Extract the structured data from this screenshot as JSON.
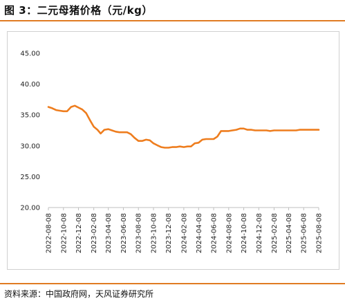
{
  "header": {
    "title": "图 3：二元母猪价格（元/kg）"
  },
  "footer": {
    "source": "资料来源：中国政府网，天风证券研究所"
  },
  "colors": {
    "accent": "#e07b22",
    "line": "#ee7d1e",
    "axis": "#bfbfbf"
  },
  "chart_data": {
    "type": "line",
    "title": "二元母猪价格（元/kg）",
    "xlabel": "",
    "ylabel": "",
    "ylim": [
      20,
      45
    ],
    "y_ticks": [
      "20.00",
      "25.00",
      "30.00",
      "35.00",
      "40.00",
      "45.00"
    ],
    "x_ticks": [
      "2022-08-08",
      "2022-10-08",
      "2022-12-08",
      "2023-02-08",
      "2023-04-08",
      "2023-06-08",
      "2023-08-08",
      "2023-10-08",
      "2023-12-08",
      "2024-02-08",
      "2024-04-08",
      "2024-06-08",
      "2024-08-08",
      "2024-10-08",
      "2024-12-08",
      "2025-02-08",
      "2025-04-08",
      "2025-06-08",
      "2025-08-08"
    ],
    "x_range": [
      "2022-08-08",
      "2025-08-08"
    ],
    "grid": false,
    "legend": "none",
    "series": [
      {
        "x": [
          "2022-08-08",
          "2022-08-23",
          "2022-09-08",
          "2022-09-23",
          "2022-10-08",
          "2022-10-23",
          "2022-11-08",
          "2022-11-23",
          "2022-12-08",
          "2022-12-23",
          "2023-01-08",
          "2023-01-23",
          "2023-02-08",
          "2023-02-23",
          "2023-03-08",
          "2023-03-23",
          "2023-04-08",
          "2023-04-23",
          "2023-05-08",
          "2023-05-23",
          "2023-06-08",
          "2023-06-23",
          "2023-07-08",
          "2023-07-23",
          "2023-08-08",
          "2023-08-23",
          "2023-09-08",
          "2023-09-23",
          "2023-10-08",
          "2023-10-23",
          "2023-11-08",
          "2023-11-23",
          "2023-12-08",
          "2023-12-23",
          "2024-01-08",
          "2024-01-23",
          "2024-02-08",
          "2024-02-23",
          "2024-03-08",
          "2024-03-23",
          "2024-04-08",
          "2024-04-23",
          "2024-05-08",
          "2024-05-23",
          "2024-06-08",
          "2024-06-23",
          "2024-07-08",
          "2024-07-23",
          "2024-08-08",
          "2024-08-23",
          "2024-09-08",
          "2024-09-23",
          "2024-10-08",
          "2024-10-23",
          "2024-11-08",
          "2024-11-23",
          "2024-12-08",
          "2024-12-23",
          "2025-01-08",
          "2025-01-23",
          "2025-02-08",
          "2025-02-23",
          "2025-03-08",
          "2025-03-23",
          "2025-04-08",
          "2025-04-23",
          "2025-05-08",
          "2025-05-23",
          "2025-06-08",
          "2025-06-23",
          "2025-07-08",
          "2025-07-23",
          "2025-08-08"
        ],
        "values": [
          36.3,
          36.1,
          35.8,
          35.7,
          35.6,
          35.6,
          36.3,
          36.5,
          36.2,
          35.9,
          35.3,
          34.2,
          33.1,
          32.6,
          32.0,
          32.6,
          32.7,
          32.5,
          32.3,
          32.2,
          32.2,
          32.2,
          31.9,
          31.3,
          30.8,
          30.8,
          31.0,
          30.9,
          30.4,
          30.1,
          29.8,
          29.7,
          29.7,
          29.8,
          29.8,
          29.9,
          29.8,
          29.9,
          29.9,
          30.4,
          30.5,
          31.0,
          31.1,
          31.1,
          31.1,
          31.5,
          32.4,
          32.4,
          32.4,
          32.5,
          32.6,
          32.8,
          32.8,
          32.6,
          32.6,
          32.5,
          32.5,
          32.5,
          32.5,
          32.4,
          32.5,
          32.5,
          32.5,
          32.5,
          32.5,
          32.5,
          32.5,
          32.6,
          32.6,
          32.6,
          32.6,
          32.6,
          32.6
        ]
      }
    ]
  }
}
